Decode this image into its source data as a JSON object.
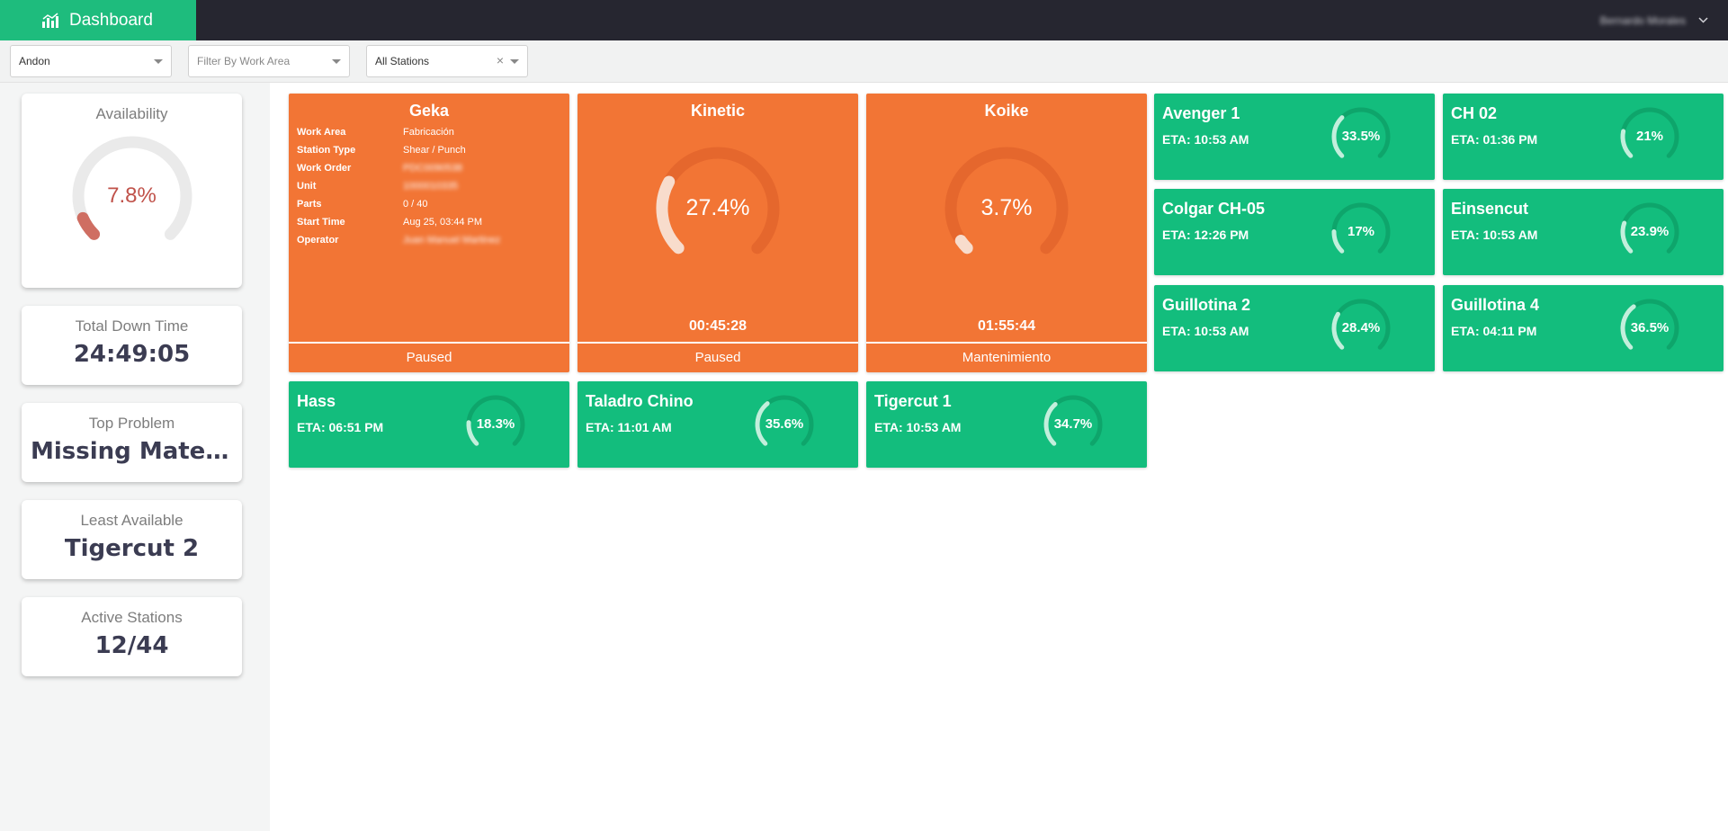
{
  "header": {
    "app_title": "Dashboard",
    "app_icon": "bar-chart-icon",
    "user_name": "Bernardo Morales",
    "colors": {
      "brand": "#1ebc7d",
      "topbar": "#262630"
    }
  },
  "filters": {
    "view": {
      "value": "Andon"
    },
    "work_area": {
      "placeholder": "Filter By Work Area"
    },
    "stations": {
      "value": "All Stations",
      "clear": "×"
    }
  },
  "summary": {
    "availability": {
      "label": "Availability",
      "value": "7.8%",
      "fraction": 0.078
    },
    "total_down_time": {
      "label": "Total Down Time",
      "value": "24:49:05"
    },
    "top_problem": {
      "label": "Top Problem",
      "value": "Missing Material"
    },
    "least_available": {
      "label": "Least Available",
      "value": "Tigercut 2"
    },
    "active_stations": {
      "label": "Active Stations",
      "value": "12/44"
    }
  },
  "paused_stations": [
    {
      "name": "Geka",
      "status": "Paused",
      "details": [
        {
          "key": "Work Area",
          "value": "Fabricación"
        },
        {
          "key": "Station Type",
          "value": "Shear / Punch"
        },
        {
          "key": "Work Order",
          "value": "PDC0090538"
        },
        {
          "key": "Unit",
          "value": "1000010335"
        },
        {
          "key": "Parts",
          "value": "0 / 40"
        },
        {
          "key": "Start Time",
          "value": "Aug 25, 03:44 PM"
        },
        {
          "key": "Operator",
          "value": "Juan Manuel Martinez"
        }
      ]
    },
    {
      "name": "Kinetic",
      "percent": "27.4%",
      "fraction": 0.274,
      "time": "00:45:28",
      "status": "Paused"
    },
    {
      "name": "Koike",
      "percent": "3.7%",
      "fraction": 0.037,
      "time": "01:55:44",
      "status": "Mantenimiento"
    }
  ],
  "running_stations": [
    {
      "name": "Avenger 1",
      "eta": "ETA: 10:53 AM",
      "percent": "33.5%",
      "fraction": 0.335
    },
    {
      "name": "CH 02",
      "eta": "ETA: 01:36 PM",
      "percent": "21%",
      "fraction": 0.21
    },
    {
      "name": "Colgar CH-05",
      "eta": "ETA: 12:26 PM",
      "percent": "17%",
      "fraction": 0.17
    },
    {
      "name": "Einsencut",
      "eta": "ETA: 10:53 AM",
      "percent": "23.9%",
      "fraction": 0.239
    },
    {
      "name": "Guillotina 2",
      "eta": "ETA: 10:53 AM",
      "percent": "28.4%",
      "fraction": 0.284
    },
    {
      "name": "Guillotina 4",
      "eta": "ETA: 04:11 PM",
      "percent": "36.5%",
      "fraction": 0.365
    },
    {
      "name": "Hass",
      "eta": "ETA: 06:51 PM",
      "percent": "18.3%",
      "fraction": 0.183
    },
    {
      "name": "Taladro Chino",
      "eta": "ETA: 11:01 AM",
      "percent": "35.6%",
      "fraction": 0.356
    },
    {
      "name": "Tigercut 1",
      "eta": "ETA: 10:53 AM",
      "percent": "34.7%",
      "fraction": 0.347
    }
  ],
  "colors": {
    "paused": "#f27535",
    "running": "#13bd7d",
    "availability_value": "#c0524a"
  }
}
